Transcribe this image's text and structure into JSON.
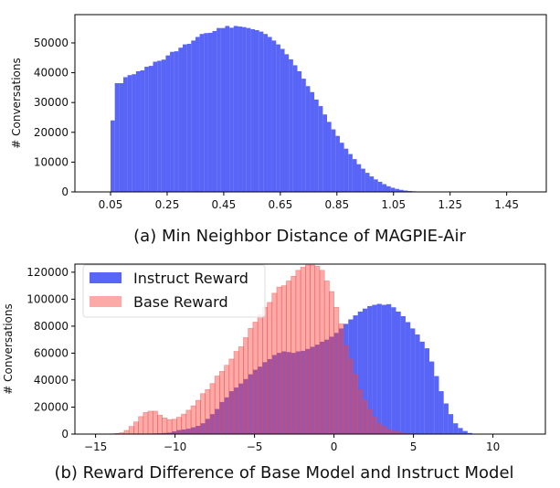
{
  "chart_data": [
    {
      "type": "bar",
      "title": "(a) Min Neighbor Distance of MAGPIE-Air",
      "xlabel": "",
      "ylabel": "# Conversations",
      "xlim": [
        -0.076,
        1.59
      ],
      "ylim": [
        0,
        59500
      ],
      "xticks": [
        "0.05",
        "0.25",
        "0.45",
        "0.65",
        "0.85",
        "1.05",
        "1.25",
        "1.45"
      ],
      "xtick_values": [
        0.05,
        0.25,
        0.45,
        0.65,
        0.85,
        1.05,
        1.25,
        1.45
      ],
      "yticks": [
        "0",
        "10000",
        "20000",
        "30000",
        "40000",
        "50000"
      ],
      "ytick_values": [
        0,
        10000,
        20000,
        30000,
        40000,
        50000
      ],
      "grid": false,
      "bin_start": 0.05,
      "bin_width": 0.015,
      "series": [
        {
          "color": "#5865F7",
          "values": [
            24000,
            36500,
            36500,
            38500,
            39200,
            39500,
            40500,
            40800,
            42000,
            42300,
            43700,
            44000,
            44400,
            45800,
            47000,
            47200,
            48400,
            49500,
            49700,
            50800,
            52000,
            53000,
            53300,
            53400,
            54000,
            55000,
            55000,
            55700,
            55100,
            55700,
            55500,
            55300,
            55000,
            54600,
            54300,
            53800,
            53000,
            52000,
            50800,
            49500,
            48000,
            46200,
            44500,
            42500,
            40500,
            38000,
            35500,
            33500,
            31000,
            28800,
            26000,
            23500,
            21000,
            18800,
            16500,
            14500,
            12700,
            11000,
            9300,
            7800,
            6400,
            5200,
            4200,
            3400,
            2600,
            1900,
            1400,
            1000,
            700,
            450,
            300,
            200,
            120,
            80,
            50,
            30
          ]
        }
      ]
    },
    {
      "type": "bar",
      "title": "(b) Reward Difference of Base Model and Instruct Model",
      "xlabel": "",
      "ylabel": "# Conversations",
      "xlim": [
        -16.3,
        13.3
      ],
      "ylim": [
        0,
        126000
      ],
      "xticks": [
        "−15",
        "−10",
        "−5",
        "0",
        "5",
        "10"
      ],
      "xtick_values": [
        -15,
        -10,
        -5,
        0,
        5,
        10
      ],
      "yticks": [
        "0",
        "20000",
        "40000",
        "60000",
        "80000",
        "100000",
        "120000"
      ],
      "ytick_values": [
        0,
        20000,
        40000,
        60000,
        80000,
        100000,
        120000
      ],
      "grid": false,
      "legend_position": "top-left",
      "bin_start": -15,
      "bin_width": 0.3,
      "series": [
        {
          "name": "Instruct Reward",
          "color": "#5865F7",
          "values": [
            50,
            50,
            50,
            50,
            50,
            100,
            150,
            200,
            250,
            300,
            350,
            400,
            500,
            600,
            800,
            1100,
            2000,
            3000,
            3400,
            4000,
            5000,
            6100,
            8000,
            11300,
            14800,
            18600,
            23800,
            27200,
            31800,
            34500,
            37500,
            40800,
            44300,
            47700,
            50000,
            53300,
            55600,
            58600,
            60200,
            61300,
            60800,
            60200,
            61300,
            61700,
            63100,
            64700,
            66300,
            68500,
            70000,
            72200,
            75000,
            78300,
            81700,
            85000,
            88000,
            90800,
            93000,
            94900,
            95800,
            96500,
            95800,
            96300,
            94000,
            90800,
            87400,
            83000,
            78300,
            73800,
            68500,
            63600,
            53800,
            43000,
            31800,
            22700,
            14800,
            8000,
            4500,
            2300,
            800,
            100,
            100,
            100,
            100,
            100,
            100,
            100,
            100,
            100,
            100,
            100
          ]
        },
        {
          "name": "Base Reward",
          "color": "#FCAAA8",
          "values": [
            30,
            40,
            80,
            200,
            500,
            1000,
            2700,
            5700,
            9000,
            13000,
            16000,
            17000,
            17000,
            14000,
            12000,
            10700,
            11000,
            12500,
            14800,
            17700,
            21000,
            25000,
            30000,
            33000,
            37500,
            43000,
            46500,
            51000,
            55600,
            61300,
            64700,
            71500,
            78300,
            83000,
            88500,
            94000,
            97600,
            104400,
            109000,
            110000,
            113500,
            117000,
            121400,
            123700,
            125300,
            125300,
            124400,
            121400,
            113500,
            105600,
            94000,
            81700,
            65800,
            55600,
            44300,
            33000,
            25000,
            18200,
            12500,
            8000,
            5700,
            3400,
            2300,
            1600,
            900,
            450,
            200,
            0,
            0,
            0,
            0,
            0,
            0,
            0,
            0,
            0,
            0,
            0,
            0,
            0,
            0,
            0,
            0,
            0,
            0,
            0,
            0,
            0,
            0,
            0
          ]
        }
      ]
    }
  ]
}
